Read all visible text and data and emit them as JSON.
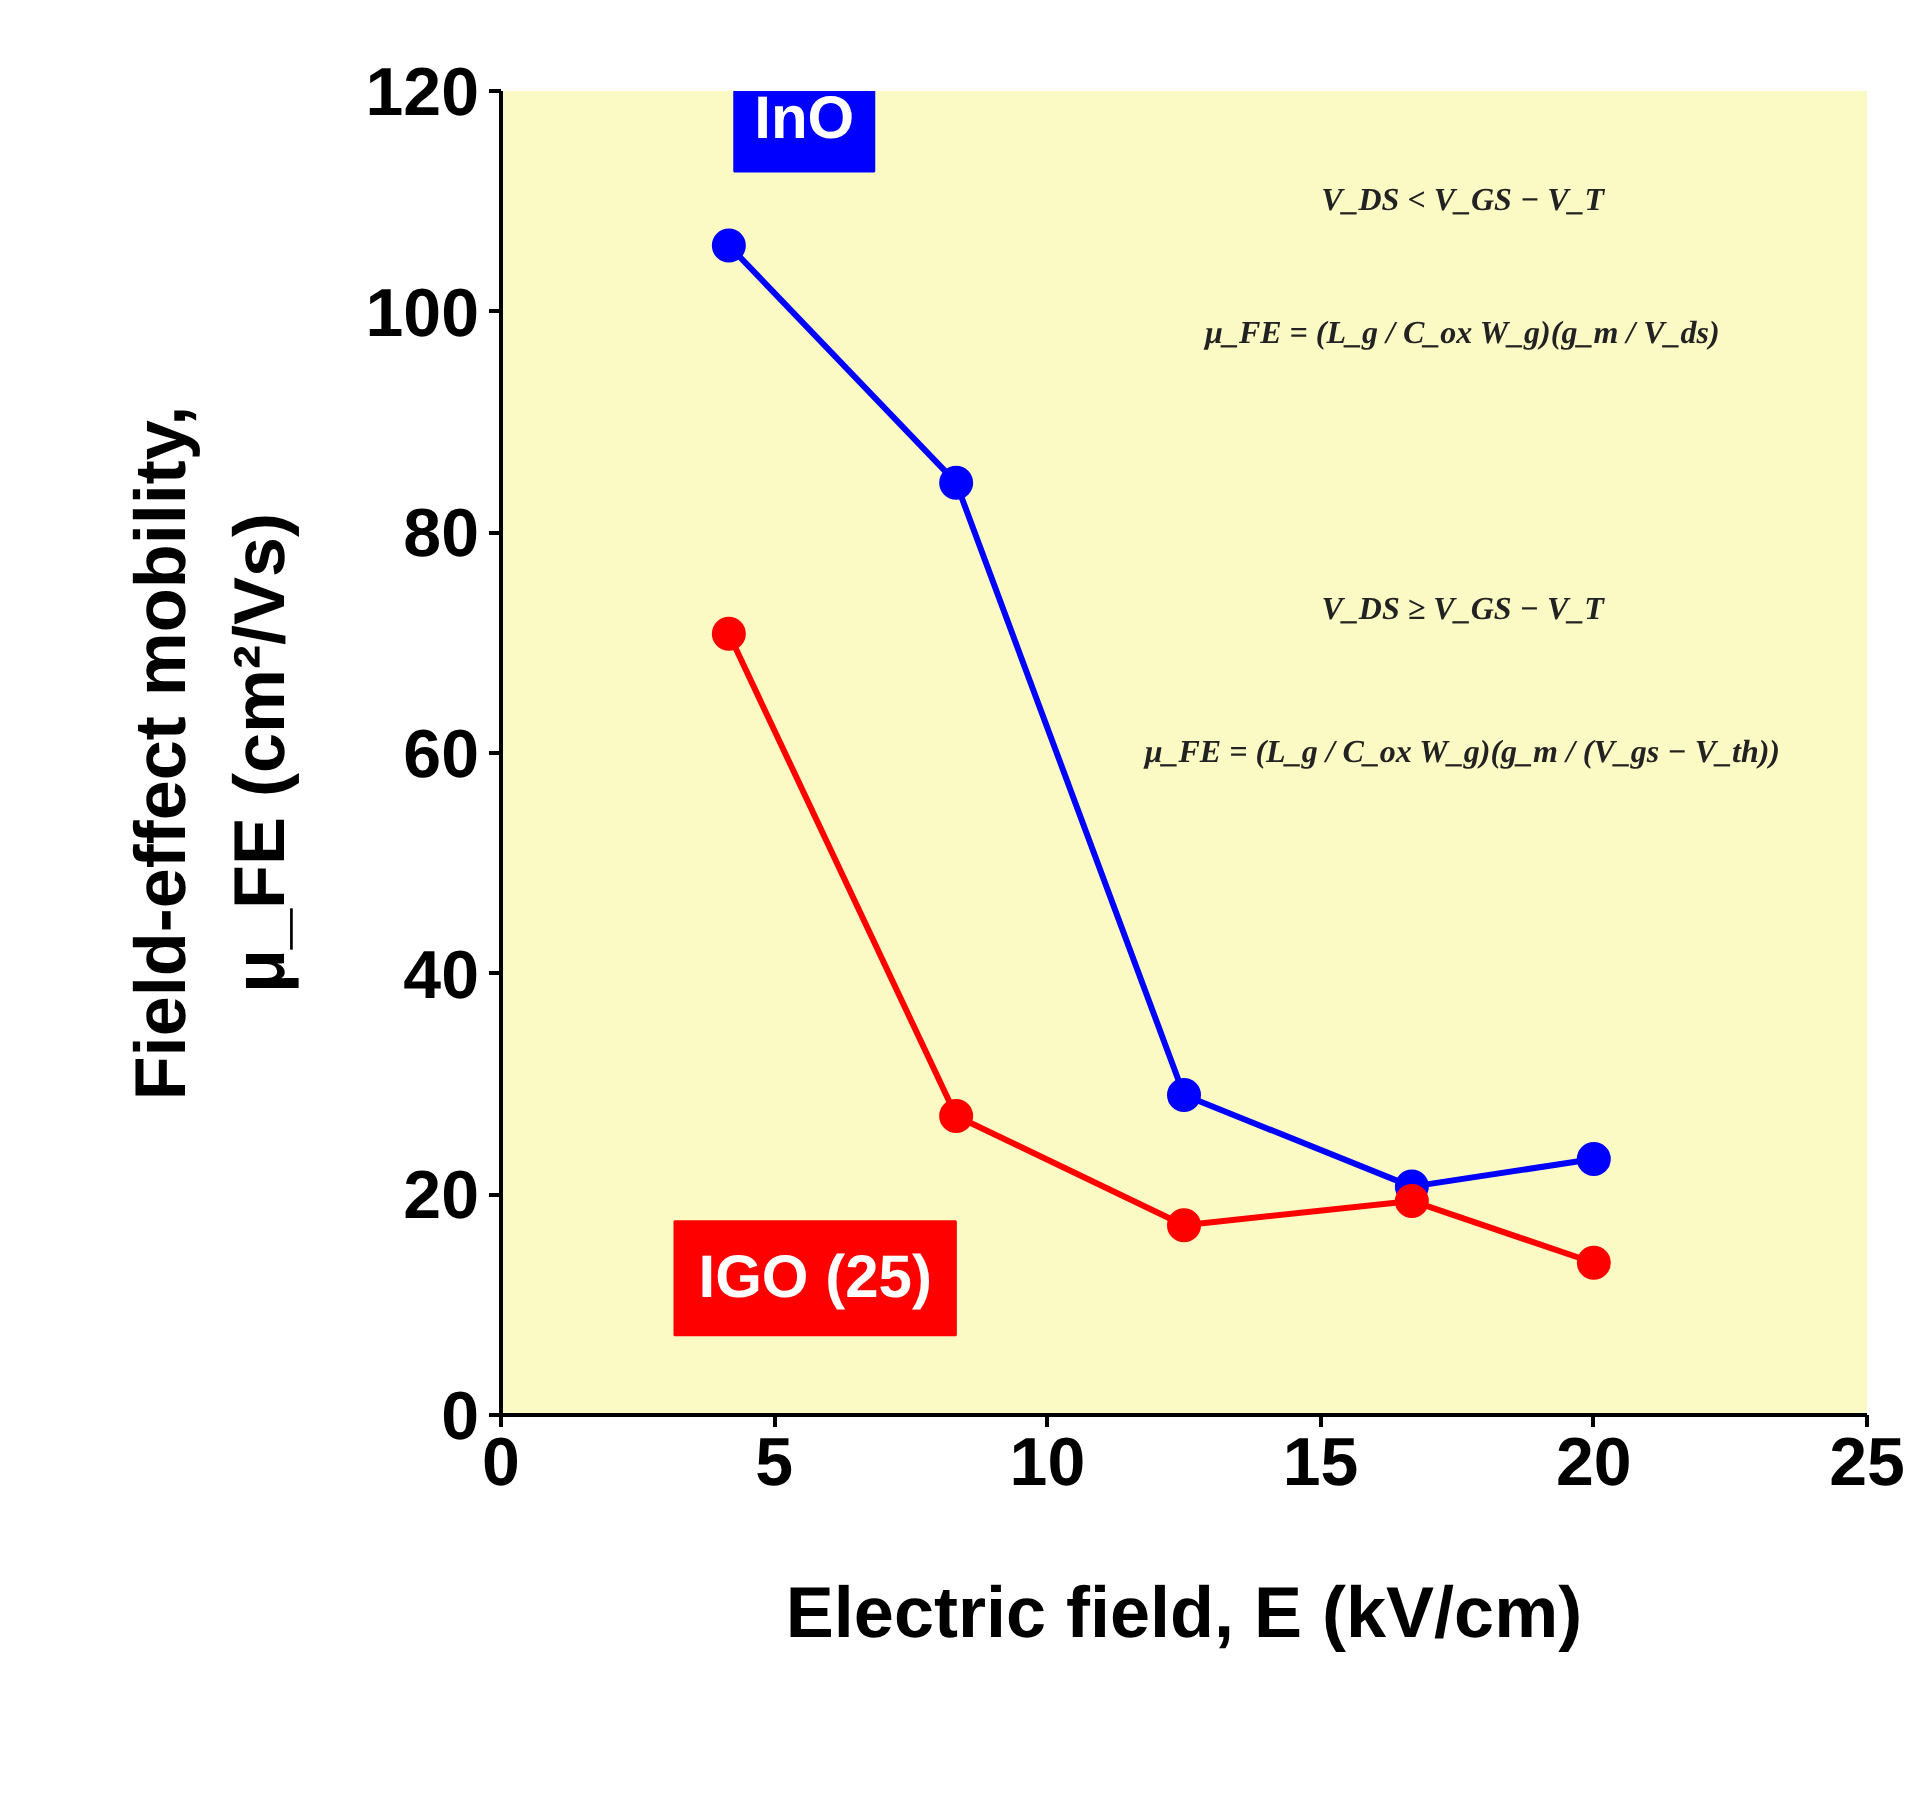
{
  "chart_data": {
    "type": "line",
    "xlabel": "Electric field, E (kV/cm)",
    "ylabel": "Field-effect mobility,\nμ_FE (cm²/Vs)",
    "x": [
      4.17,
      8.33,
      12.5,
      16.67,
      20.0
    ],
    "series": [
      {
        "name": "InO",
        "color": "#0000ff",
        "values": [
          106,
          84.5,
          29,
          20.7,
          23.2
        ]
      },
      {
        "name": "IGO (25)",
        "color": "#ff0000",
        "values": [
          70.8,
          27.1,
          17.2,
          19.4,
          13.8
        ]
      }
    ],
    "xlim": [
      0,
      25
    ],
    "ylim": [
      0,
      120
    ],
    "xticks": [
      0,
      5,
      10,
      15,
      20,
      25
    ],
    "yticks": [
      0,
      20,
      40,
      60,
      80,
      100,
      120
    ],
    "grid": false,
    "marker": "circle",
    "line_style": "solid",
    "annotations": [
      "V_DS < V_GS − V_T",
      "μ_FE = (L_g / C_ox W_g)(g_m / V_ds)",
      "V_DS ≥ V_GS − V_T",
      "μ_FE = (L_g / C_ox W_g)(g_m / (V_gs − V_th))"
    ]
  }
}
